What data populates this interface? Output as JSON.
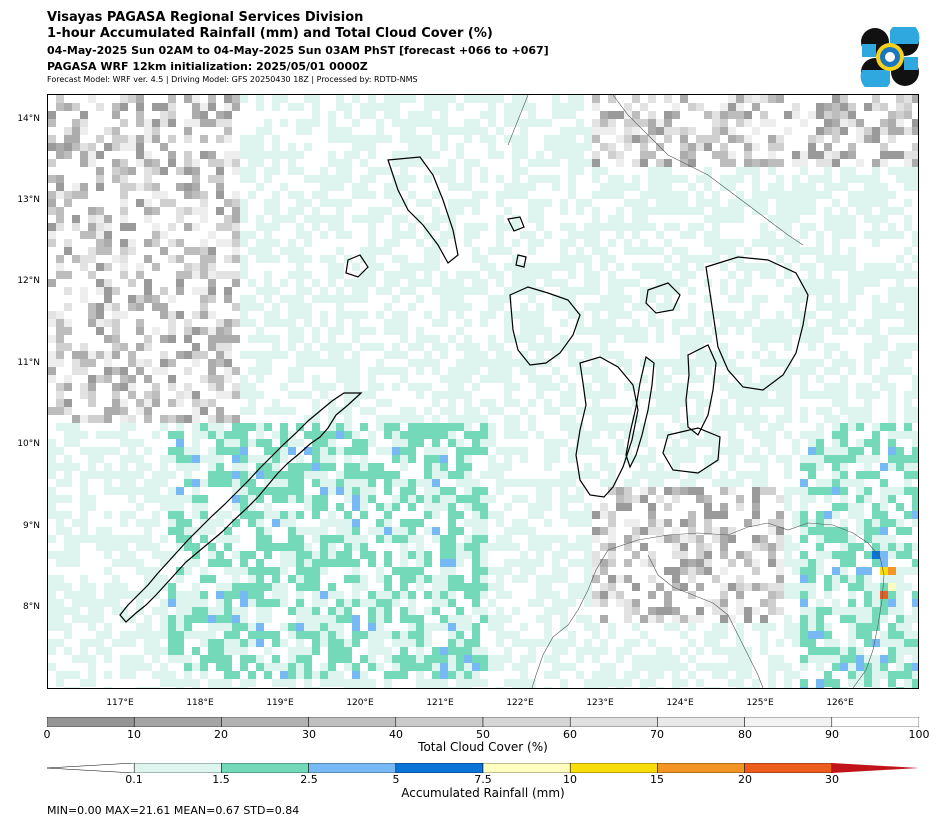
{
  "header": {
    "title": "Visayas PAGASA Regional Services Division",
    "subtitle": "1-hour Accumulated Rainfall (mm) and Total Cloud Cover (%)",
    "period": "04-May-2025 Sun 02AM to 04-May-2025 Sun 03AM PhST [forecast +066 to +067]",
    "init": "PAGASA WRF 12km initialization: 2025/05/01 0000Z",
    "model": "Forecast Model: WRF ver. 4.5 | Driving Model: GFS 20250430 18Z | Processed by: RDTD-NMS"
  },
  "map": {
    "lat_labels": [
      "14°N",
      "13°N",
      "12°N",
      "11°N",
      "10°N",
      "9°N",
      "8°N"
    ],
    "lon_labels": [
      "117°E",
      "118°E",
      "119°E",
      "120°E",
      "121°E",
      "122°E",
      "123°E",
      "124°E",
      "125°E",
      "126°E"
    ]
  },
  "cloud_bar": {
    "label": "Total Cloud Cover (%)",
    "ticks": [
      "0",
      "10",
      "20",
      "30",
      "40",
      "50",
      "60",
      "70",
      "80",
      "90",
      "100"
    ],
    "colors": [
      "#959595",
      "#a4a4a4",
      "#b2b2b2",
      "#bfbfbf",
      "#cbcbcb",
      "#d6d6d6",
      "#e0e0e0",
      "#e9e9e9",
      "#f2f2f2",
      "#ffffff"
    ]
  },
  "rain_bar": {
    "label": "Accumulated Rainfall (mm)",
    "ticks": [
      "0.1",
      "1.5",
      "2.5",
      "5",
      "7.5",
      "10",
      "15",
      "20",
      "30"
    ],
    "colors": [
      "#ddf5ee",
      "#73d9b9",
      "#76b9f4",
      "#0a74d8",
      "#fffdc0",
      "#f8dc0c",
      "#f29524",
      "#ec5c1c"
    ],
    "under_color": "#ffffff",
    "over_color": "#c0141a"
  },
  "stats": "MIN=0.00   MAX=21.61   MEAN=0.67   STD=0.84"
}
